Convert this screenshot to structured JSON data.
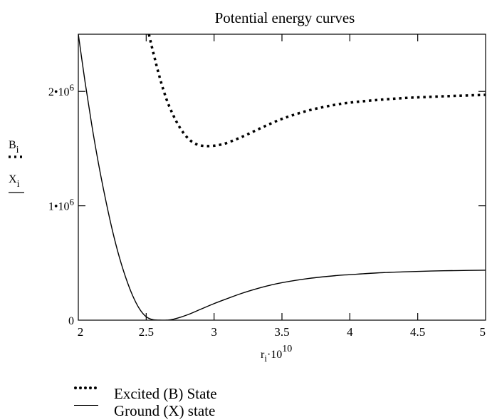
{
  "chart_data": {
    "type": "line",
    "title": "Potential energy curves",
    "xlabel": {
      "base": "r",
      "subscript": "i",
      "middle": "·10",
      "superscript": "10"
    },
    "ylabels": [
      {
        "base": "B",
        "subscript": "i",
        "style": "dotted"
      },
      {
        "base": "X",
        "subscript": "i",
        "style": "solid"
      }
    ],
    "xlim": [
      2,
      5
    ],
    "ylim": [
      0,
      2500000
    ],
    "x_ticks": [
      {
        "value": 2,
        "label": "2"
      },
      {
        "value": 2.5,
        "label": "2.5"
      },
      {
        "value": 3,
        "label": "3"
      },
      {
        "value": 3.5,
        "label": "3.5"
      },
      {
        "value": 4,
        "label": "4"
      },
      {
        "value": 4.5,
        "label": "4.5"
      },
      {
        "value": 5,
        "label": "5"
      }
    ],
    "y_ticks": [
      {
        "value": 0,
        "label": "0"
      },
      {
        "value": 1000000,
        "label": "1•10",
        "exp": "6"
      },
      {
        "value": 2000000,
        "label": "2•10",
        "exp": "6"
      }
    ],
    "series": [
      {
        "name": "Excited (B) State",
        "style": "dotted",
        "x": [
          2.52,
          2.55,
          2.6,
          2.65,
          2.7,
          2.75,
          2.8,
          2.85,
          2.9,
          2.95,
          3.0,
          3.05,
          3.1,
          3.2,
          3.3,
          3.4,
          3.5,
          3.6,
          3.7,
          3.8,
          3.9,
          4.0,
          4.2,
          4.4,
          4.6,
          4.8,
          5.0
        ],
        "y": [
          2500000,
          2350000,
          2120000,
          1930000,
          1790000,
          1680000,
          1600000,
          1550000,
          1528000,
          1522000,
          1525000,
          1535000,
          1552000,
          1600000,
          1655000,
          1710000,
          1760000,
          1800000,
          1835000,
          1862000,
          1885000,
          1902000,
          1925000,
          1942000,
          1953000,
          1962000,
          1970000
        ]
      },
      {
        "name": "Ground (X) state",
        "style": "solid",
        "x": [
          2.0,
          2.05,
          2.1,
          2.15,
          2.2,
          2.25,
          2.3,
          2.35,
          2.4,
          2.45,
          2.5,
          2.55,
          2.6,
          2.65,
          2.7,
          2.8,
          2.9,
          3.0,
          3.1,
          3.2,
          3.3,
          3.4,
          3.5,
          3.7,
          3.9,
          4.0,
          4.2,
          4.4,
          4.6,
          4.8,
          5.0
        ],
        "y": [
          2500000,
          2080000,
          1700000,
          1360000,
          1060000,
          790000,
          560000,
          370000,
          215000,
          100000,
          30000,
          4000,
          0,
          0,
          8000,
          45000,
          95000,
          145000,
          190000,
          233000,
          270000,
          302000,
          328000,
          365000,
          390000,
          398000,
          413000,
          423000,
          430000,
          434000,
          437000
        ]
      }
    ],
    "grid": false,
    "legend_position": "bottom-left"
  }
}
